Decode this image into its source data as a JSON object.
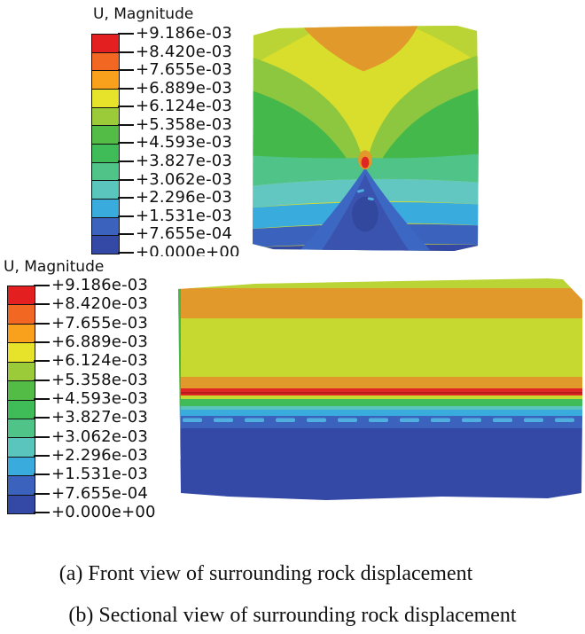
{
  "page": {
    "background": "#ffffff"
  },
  "legend": {
    "title": "U, Magnitude",
    "tick_labels": [
      "+9.186e-03",
      "+8.420e-03",
      "+7.655e-03",
      "+6.889e-03",
      "+6.124e-03",
      "+5.358e-03",
      "+4.593e-03",
      "+3.827e-03",
      "+3.062e-03",
      "+2.296e-03",
      "+1.531e-03",
      "+7.655e-04",
      "+0.000e+00"
    ],
    "band_colors": [
      "#e3201f",
      "#f26822",
      "#f9a11d",
      "#e6e32a",
      "#9ccb3a",
      "#53bc46",
      "#3fbc58",
      "#4fc388",
      "#5ac5bd",
      "#3aabdd",
      "#3b62bd",
      "#3349a5"
    ]
  },
  "palette": {
    "yellow": "#d9de2d",
    "yellowGreen": "#c6d931",
    "yellowGreenLight": "#b9d434",
    "orange": "#e0992a",
    "red": "#e02622",
    "redDark": "#b41d1c",
    "greenLight": "#8dc73f",
    "green": "#45b84c",
    "green2": "#3fbc58",
    "tealGreen": "#4fc388",
    "tealLight": "#62c7c1",
    "teal": "#5ac5bd",
    "cyanBlue": "#3aabdd",
    "cyanDash": "#4fb0e0",
    "blue": "#3b62bd",
    "blueMid": "#3c68c4",
    "darkBlue": "#3349a5",
    "plumeCore": "#3a53ae",
    "plumeDark": "#32479e"
  },
  "captions": {
    "a": "(a) Front view of surrounding rock displacement",
    "b": "(b) Sectional view of surrounding rock displacement"
  },
  "chart_data": [
    {
      "type": "heatmap",
      "variant": "fea-displacement-contour",
      "title": "U, Magnitude",
      "subtitle": "(a) Front view of surrounding rock displacement",
      "legend_position": "left",
      "value_range": [
        0.0,
        0.009186
      ],
      "contour_levels": [
        0.0,
        0.0007655,
        0.001531,
        0.002296,
        0.003062,
        0.003827,
        0.004593,
        0.005358,
        0.006124,
        0.006889,
        0.007655,
        0.00842,
        0.009186
      ],
      "notes_top_to_bottom": [
        "orange zone ~7.0-7.7e-03 at top center",
        "yellow ~6.1-6.9e-03 upper region with central column narrowing downward",
        "green lobes ~3.8-5.4e-03 on left and right flanks",
        "small red/orange peak up to 9.186e-03 at center (tunnel face)",
        "teal and cyan bands ~1.5-3.1e-03 across lower half",
        "blue plume widening downward below center",
        "dark blue minimum 0-7.655e-04 along bottom"
      ]
    },
    {
      "type": "heatmap",
      "variant": "fea-displacement-contour",
      "title": "U, Magnitude",
      "subtitle": "(b) Sectional view of surrounding rock displacement",
      "legend_position": "left",
      "value_range": [
        0.0,
        0.009186
      ],
      "contour_levels": [
        0.0,
        0.0007655,
        0.001531,
        0.002296,
        0.003062,
        0.003827,
        0.004593,
        0.005358,
        0.006124,
        0.006889,
        0.007655,
        0.00842,
        0.009186
      ],
      "notes_top_to_bottom": [
        "orange band ~7.0-7.7e-03 near top surface",
        "wide yellow-green band ~6.1e-03",
        "thin orange then red band up to 9.186e-03 at tunnel level",
        "thin green and teal transition bands",
        "cyan line and dashed light-blue marks inside blue band",
        "large dark blue region 0-7.655e-04 in lower half"
      ]
    }
  ]
}
